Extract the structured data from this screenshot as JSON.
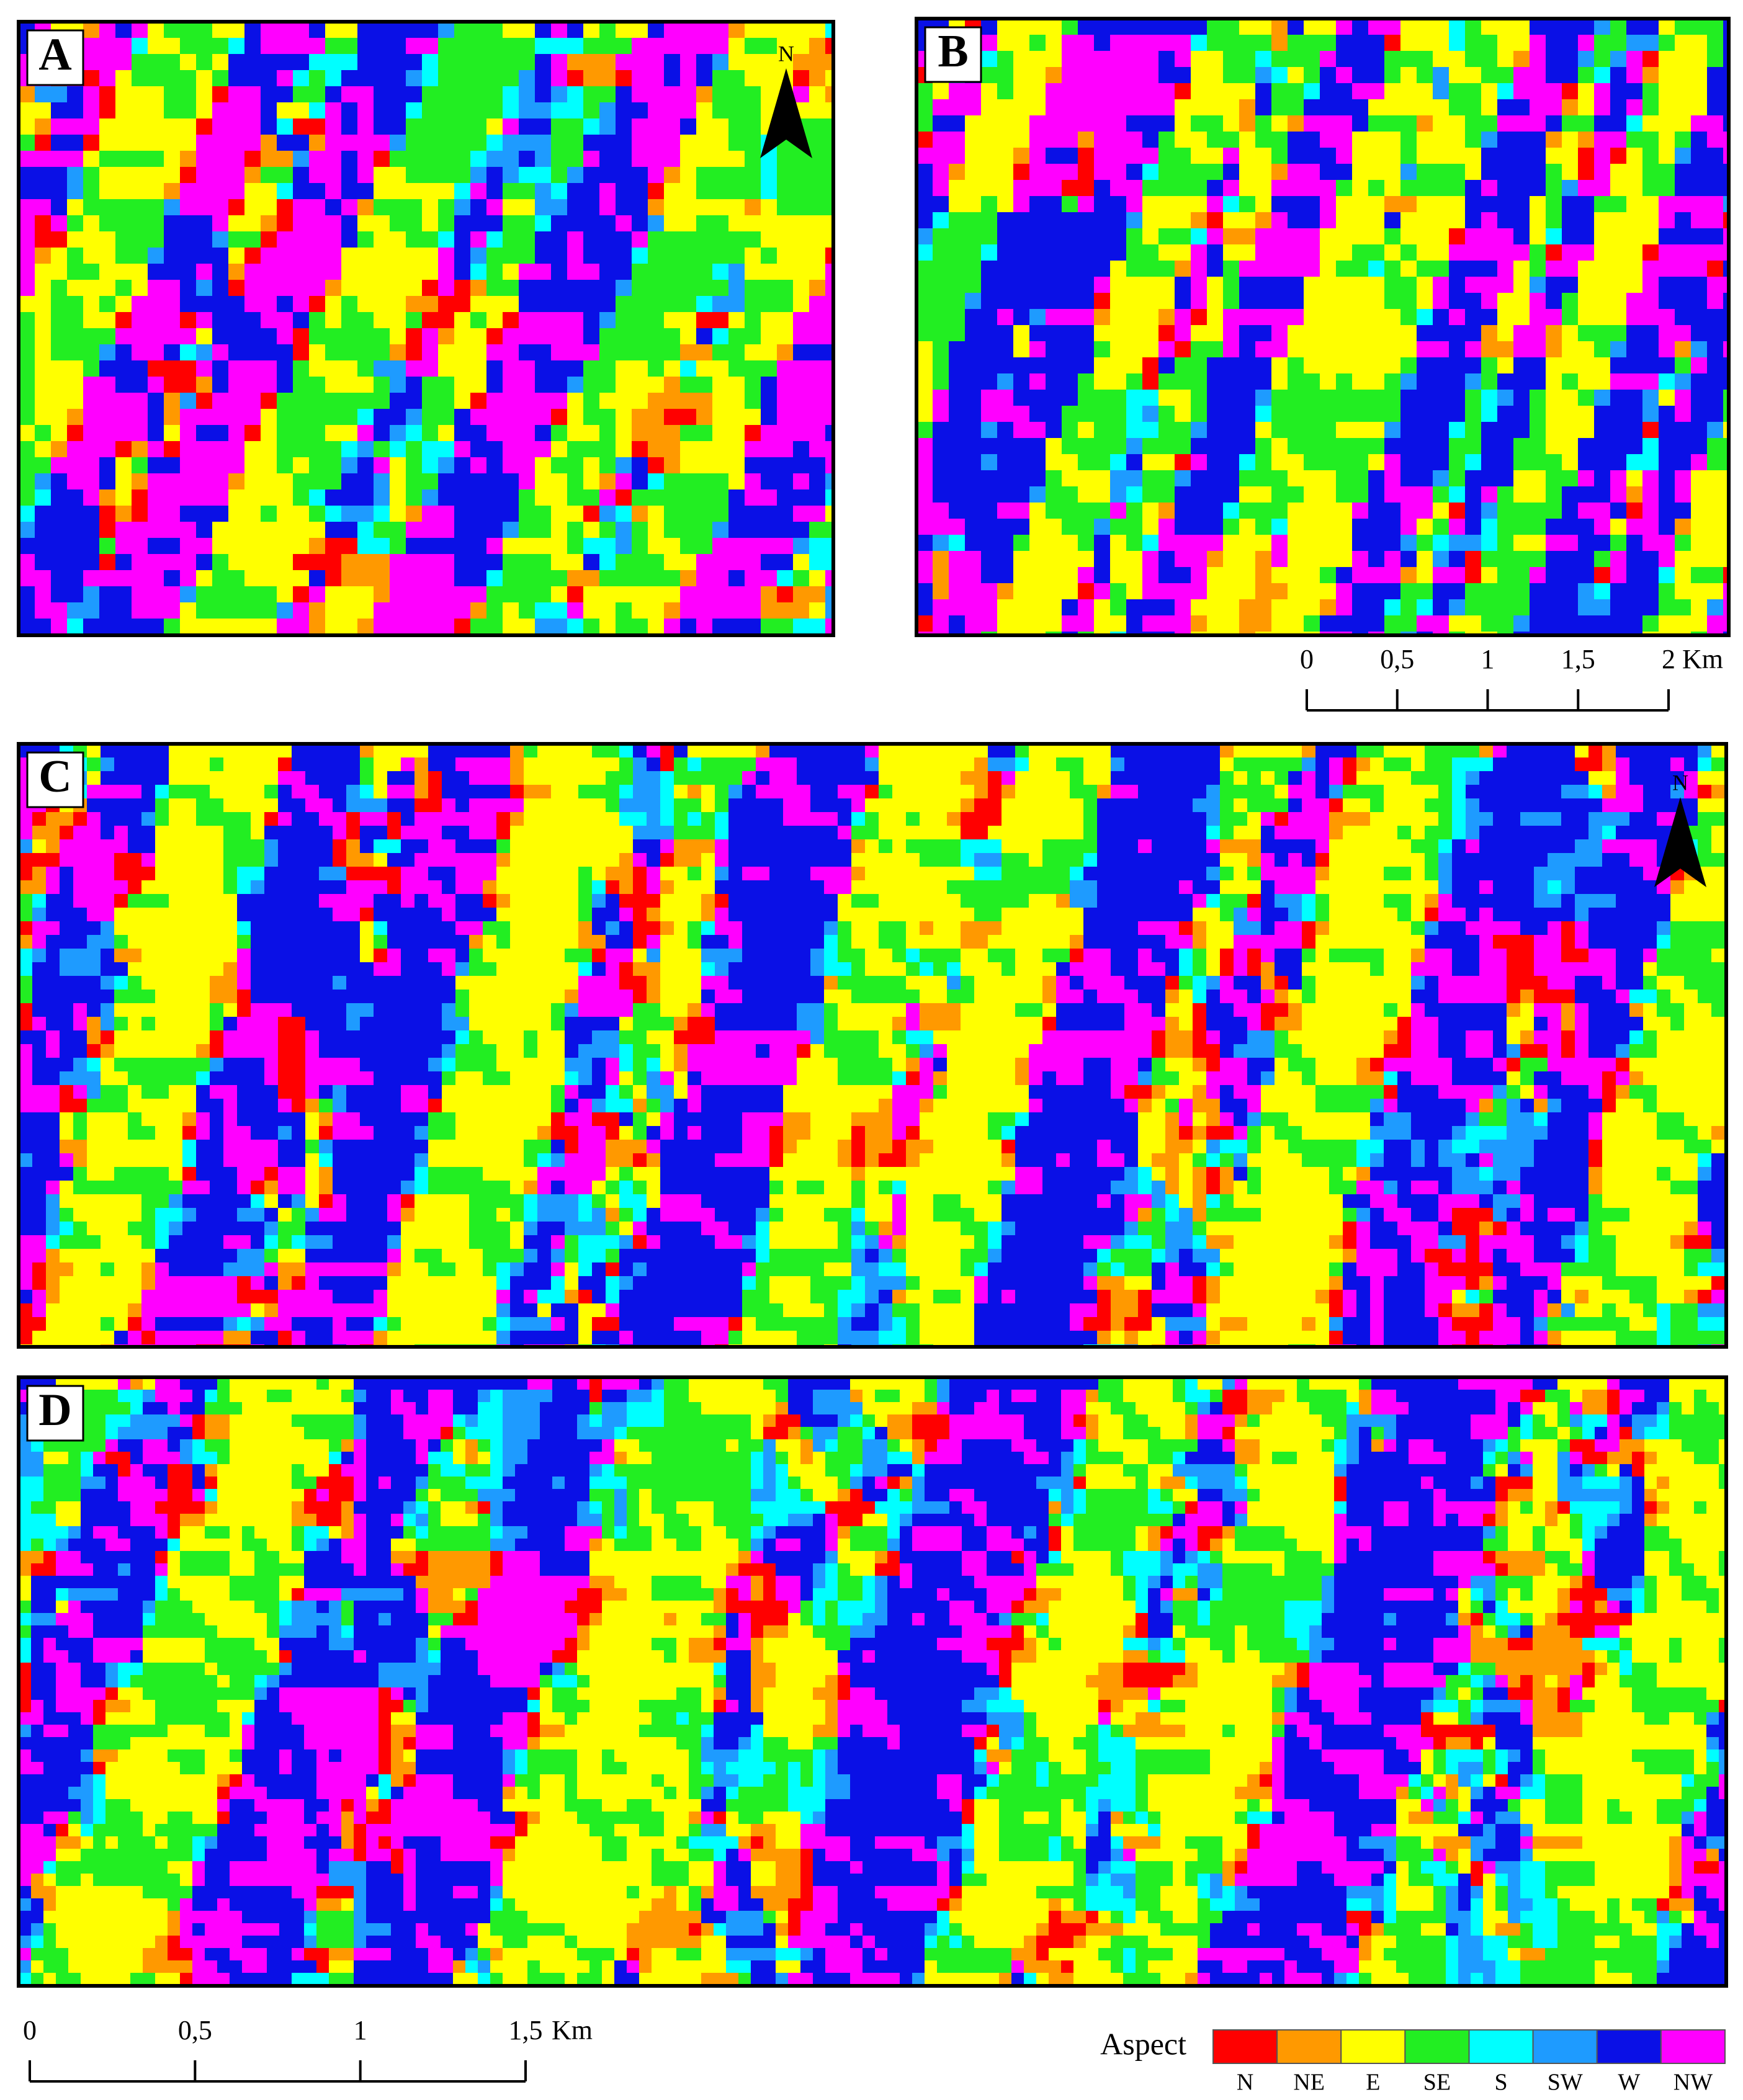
{
  "panels": [
    {
      "label": "A"
    },
    {
      "label": "B"
    },
    {
      "label": "C"
    },
    {
      "label": "D"
    }
  ],
  "north_arrows": [
    {
      "label": "N"
    },
    {
      "label": "N"
    }
  ],
  "scale_bars": [
    {
      "xlim": [
        0,
        2
      ],
      "ticks": [
        0,
        {
          "value": 0.5,
          "label": "0,5"
        },
        1,
        {
          "value": 1.5,
          "label": "1,5"
        },
        2
      ],
      "unit": "Km"
    },
    {
      "xlim": [
        0,
        1.5
      ],
      "ticks": [
        0,
        {
          "value": 0.5,
          "label": "0,5"
        },
        1,
        {
          "value": 1.5,
          "label": "1,5"
        }
      ],
      "unit": "Km"
    }
  ],
  "legend": {
    "title": "Aspect",
    "classes": [
      {
        "name": "N",
        "color": "#ff0000"
      },
      {
        "name": "NE",
        "color": "#ff9900"
      },
      {
        "name": "E",
        "color": "#ffff00"
      },
      {
        "name": "SE",
        "color": "#22ee22"
      },
      {
        "name": "S",
        "color": "#00ffff"
      },
      {
        "name": "SW",
        "color": "#1e9bff"
      },
      {
        "name": "W",
        "color": "#0a10e6"
      },
      {
        "name": "NW",
        "color": "#ff00ff"
      }
    ]
  }
}
